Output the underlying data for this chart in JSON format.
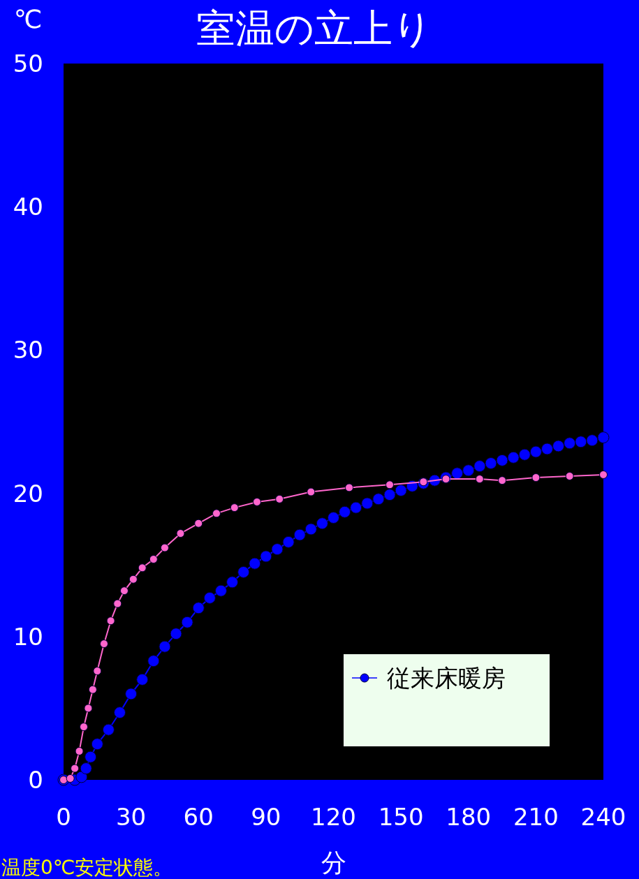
{
  "chart_data": {
    "type": "line",
    "title": "室温の立上り",
    "ylabel": "℃",
    "xlabel": "分",
    "annotations": [
      "温度0℃安定状態。"
    ],
    "xlim": [
      0,
      240
    ],
    "ylim": [
      0,
      50
    ],
    "xticks": [
      0,
      30,
      60,
      90,
      120,
      150,
      180,
      210,
      240
    ],
    "yticks": [
      0,
      10,
      20,
      30,
      40,
      50
    ],
    "marker": "circle",
    "legend": "bottom right",
    "series": [
      {
        "name": "従来床暖房",
        "color": "#0000ff",
        "x": [
          0,
          5,
          8,
          10,
          12,
          15,
          20,
          25,
          30,
          35,
          40,
          45,
          50,
          55,
          60,
          65,
          70,
          75,
          80,
          85,
          90,
          95,
          100,
          105,
          110,
          115,
          120,
          125,
          130,
          135,
          140,
          145,
          150,
          155,
          160,
          165,
          170,
          175,
          180,
          185,
          190,
          195,
          200,
          205,
          210,
          215,
          220,
          225,
          230,
          235,
          240
        ],
        "values": [
          0,
          0,
          0.2,
          0.8,
          1.6,
          2.5,
          3.5,
          4.7,
          6.0,
          7.0,
          8.3,
          9.3,
          10.2,
          11.0,
          12.0,
          12.7,
          13.2,
          13.8,
          14.5,
          15.1,
          15.6,
          16.1,
          16.6,
          17.1,
          17.5,
          17.9,
          18.3,
          18.7,
          19.0,
          19.3,
          19.6,
          19.9,
          20.2,
          20.5,
          20.7,
          20.9,
          21.1,
          21.4,
          21.6,
          21.9,
          22.1,
          22.3,
          22.5,
          22.7,
          22.9,
          23.1,
          23.3,
          23.5,
          23.6,
          23.7,
          23.9
        ]
      },
      {
        "color": "#ff66cc",
        "x": [
          0,
          3,
          5,
          7,
          9,
          11,
          13,
          15,
          18,
          21,
          24,
          27,
          31,
          35,
          40,
          45,
          52,
          60,
          68,
          76,
          86,
          96,
          110,
          127,
          145,
          160,
          170,
          185,
          195,
          210,
          225,
          240
        ],
        "values": [
          0,
          0.1,
          0.8,
          2.0,
          3.7,
          5.0,
          6.3,
          7.6,
          9.5,
          11.1,
          12.3,
          13.2,
          14.0,
          14.8,
          15.4,
          16.2,
          17.2,
          17.9,
          18.6,
          19.0,
          19.4,
          19.6,
          20.1,
          20.4,
          20.6,
          20.8,
          21.0,
          21.0,
          20.9,
          21.1,
          21.2,
          21.3
        ]
      }
    ]
  }
}
